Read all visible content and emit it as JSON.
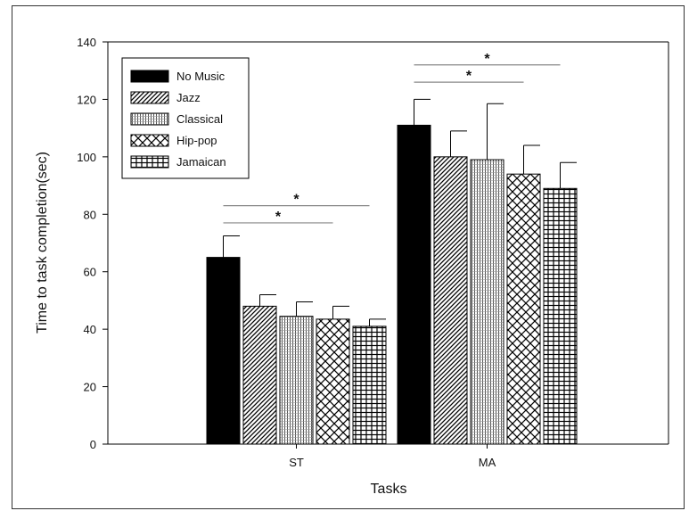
{
  "chart_data": {
    "type": "bar",
    "xlabel": "Tasks",
    "ylabel": "Time to task completion(sec)",
    "ylim": [
      0,
      140
    ],
    "yticks": [
      0,
      20,
      40,
      60,
      80,
      100,
      120,
      140
    ],
    "categories": [
      "ST",
      "MA"
    ],
    "legend_position": "top-left",
    "series": [
      {
        "name": "No Music",
        "pattern": "solid",
        "values": [
          65,
          111
        ],
        "errors": [
          7.5,
          9
        ]
      },
      {
        "name": "Jazz",
        "pattern": "diagonal",
        "values": [
          48,
          100
        ],
        "errors": [
          4,
          9
        ]
      },
      {
        "name": "Classical",
        "pattern": "vertical-lines",
        "values": [
          44.5,
          99
        ],
        "errors": [
          5,
          19.5
        ]
      },
      {
        "name": "Hip-pop",
        "pattern": "crosshatch-diagonal",
        "values": [
          43.5,
          94
        ],
        "errors": [
          4.5,
          10
        ]
      },
      {
        "name": "Jamaican",
        "pattern": "grid",
        "values": [
          41,
          89
        ],
        "errors": [
          2.5,
          9
        ]
      }
    ],
    "annotations": [
      {
        "category": "ST",
        "text": "*",
        "from_series": 0,
        "to_series": 4,
        "y": 83
      },
      {
        "category": "ST",
        "text": "*",
        "from_series": 0,
        "to_series": 3,
        "y": 77
      },
      {
        "category": "MA",
        "text": "*",
        "from_series": 0,
        "to_series": 4,
        "y": 132
      },
      {
        "category": "MA",
        "text": "*",
        "from_series": 0,
        "to_series": 3,
        "y": 126
      }
    ],
    "colors": {
      "bar_fill": "#000000",
      "background": "#ffffff",
      "significance_line": "#888888"
    }
  }
}
